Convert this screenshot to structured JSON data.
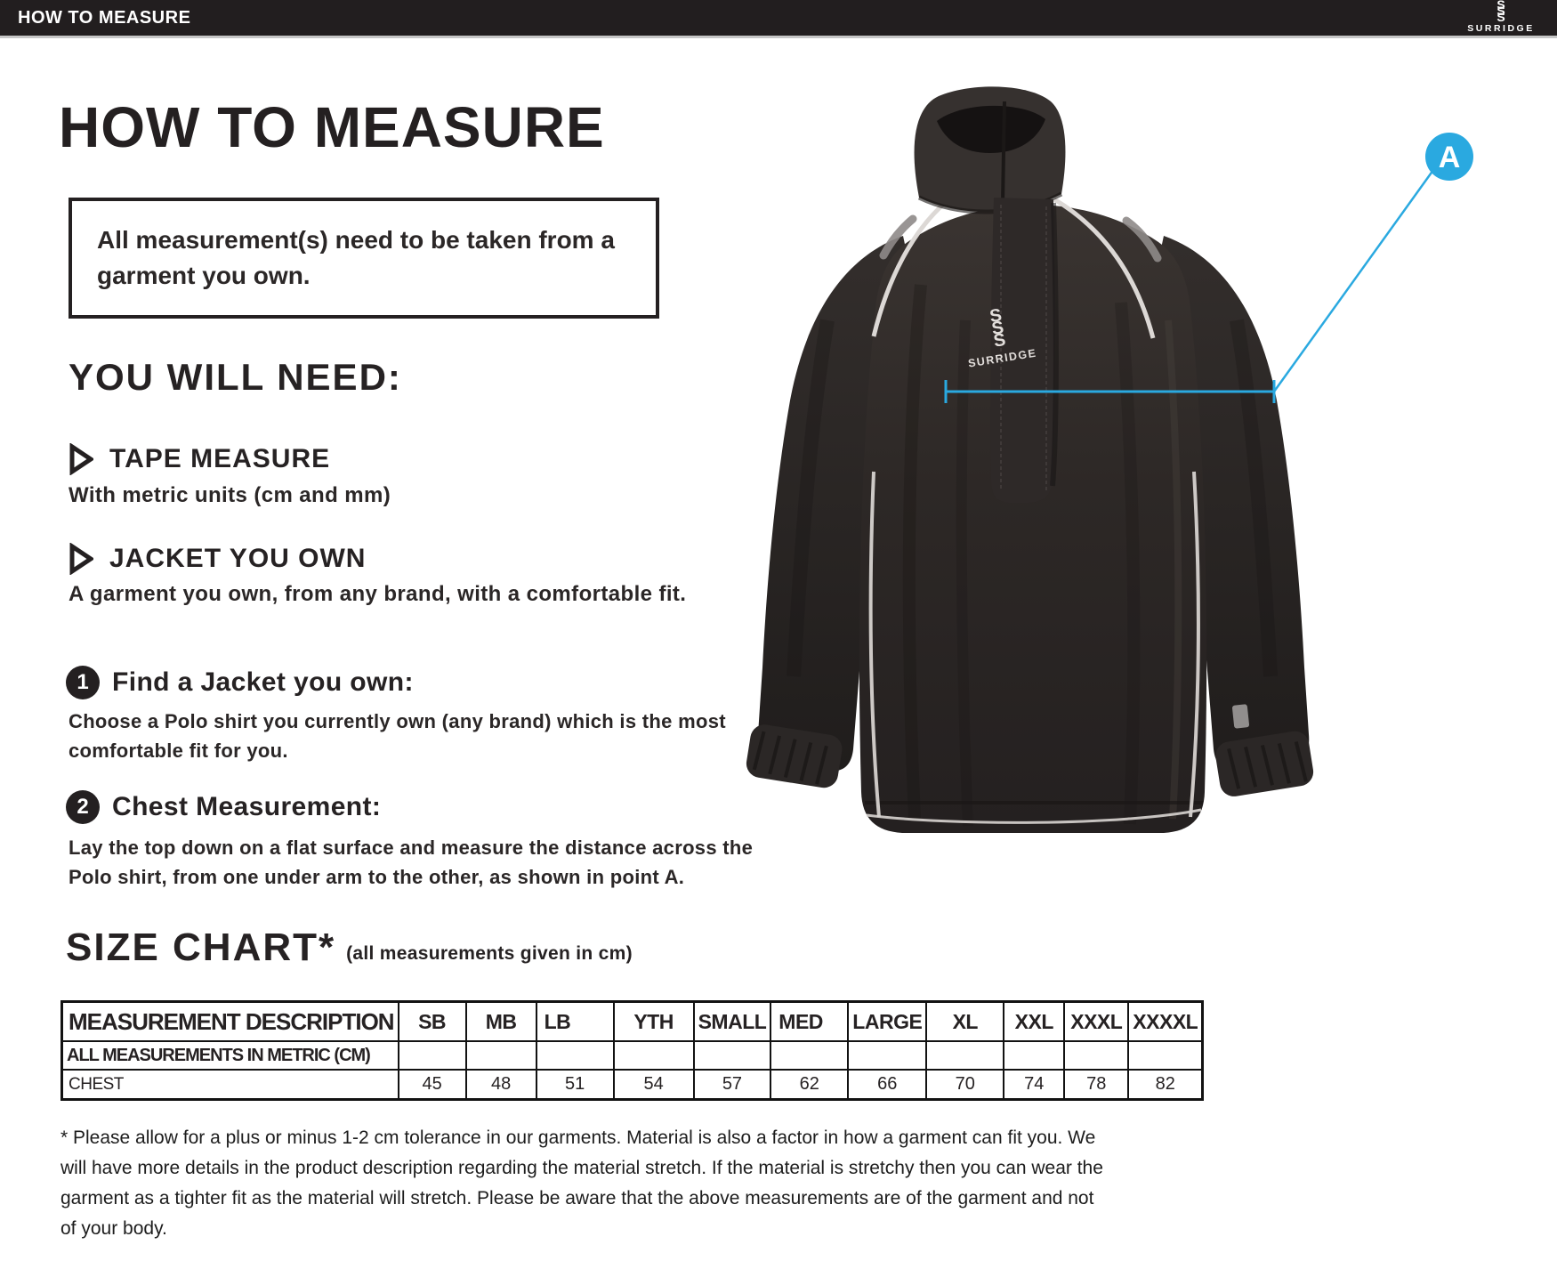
{
  "colors": {
    "bar_background": "#221e1f",
    "ink": "#242021",
    "accent_blue": "#2aa9e0",
    "piping_white": "#dcd8d5"
  },
  "topbar": {
    "title": "HOW TO MEASURE",
    "brand": "SURRIDGE",
    "brand_mark_letter": "S"
  },
  "main": {
    "title": "HOW TO MEASURE",
    "note": "All measurement(s) need to be taken from a garment you own.",
    "you_will_need": {
      "heading": "YOU WILL NEED:",
      "items": [
        {
          "label": "TAPE MEASURE",
          "description": "With metric units (cm and mm)"
        },
        {
          "label": "JACKET YOU OWN",
          "description": "A garment you own, from any brand, with a comfortable fit."
        }
      ]
    },
    "steps": [
      {
        "number": "1",
        "title": "Find a Jacket you own:",
        "description": "Choose a Polo shirt you currently own (any brand) which is the most comfortable fit for you."
      },
      {
        "number": "2",
        "title": "Chest Measurement:",
        "description": "Lay the top down on a flat surface and measure the distance across the Polo shirt, from one under arm to the other, as shown in point A."
      }
    ],
    "size_chart": {
      "heading": "SIZE CHART*",
      "subheading": "(all measurements given in cm)"
    },
    "footnote": "* Please allow for a plus or minus 1-2 cm tolerance in our garments. Material is also a factor in how a garment can fit you. We will have more details in the product description regarding the material stretch. If the material is stretchy then you can wear the garment as a tighter fit as the material will stretch. Please be aware that the above measurements are of the garment and not of your body."
  },
  "table": {
    "columns": [
      "MEASUREMENT DESCRIPTION",
      "SB",
      "MB",
      "LB",
      "YTH",
      "SMALL",
      "MED",
      "LARGE",
      "XL",
      "XXL",
      "XXXL",
      "XXXXL"
    ],
    "rows": [
      {
        "label": "ALL MEASUREMENTS IN METRIC (CM)",
        "values": [
          "",
          "",
          "",
          "",
          "",
          "",
          "",
          "",
          "",
          "",
          ""
        ]
      },
      {
        "label": "CHEST",
        "values": [
          "45",
          "48",
          "51",
          "54",
          "57",
          "62",
          "66",
          "70",
          "74",
          "78",
          "82"
        ]
      }
    ]
  },
  "figure": {
    "garment_logo": "SURRIDGE",
    "garment_logo_mark_letter": "S",
    "marker_label": "A"
  }
}
